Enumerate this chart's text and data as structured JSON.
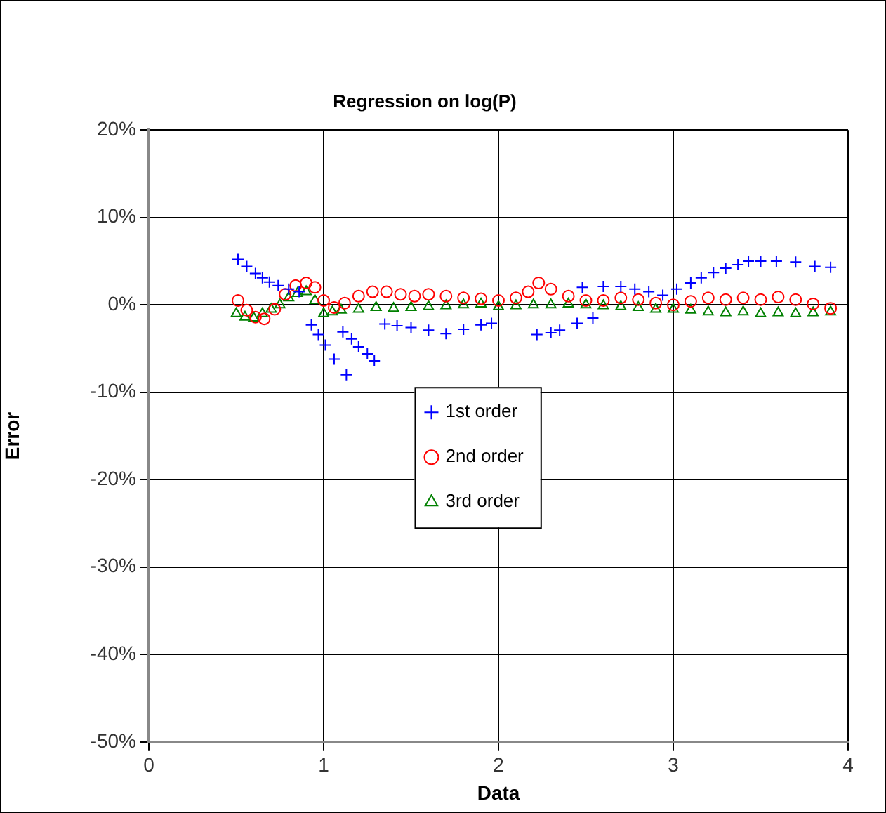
{
  "chart_data": {
    "type": "scatter",
    "title": "Regression on log(P)",
    "xlabel": "Data",
    "ylabel": "Error",
    "xlim": [
      0,
      4
    ],
    "xticks": [
      0,
      1,
      2,
      3,
      4
    ],
    "ylim": [
      -50,
      20
    ],
    "yticks": [
      {
        "value": 20,
        "label": "20%"
      },
      {
        "value": 10,
        "label": "10%"
      },
      {
        "value": 0,
        "label": "0%"
      },
      {
        "value": -10,
        "label": "-10%"
      },
      {
        "value": -20,
        "label": "-20%"
      },
      {
        "value": -30,
        "label": "-30%"
      },
      {
        "value": -40,
        "label": "-40%"
      },
      {
        "value": -50,
        "label": "-50%"
      }
    ],
    "grid": true,
    "legend": "center",
    "series": [
      {
        "name": "1st order",
        "color": "#0000ff",
        "marker": "cross",
        "x": [
          0.51,
          0.56,
          0.61,
          0.65,
          0.69,
          0.74,
          0.8,
          0.86,
          0.93,
          0.97,
          1.01,
          1.06,
          1.13,
          1.11,
          1.16,
          1.2,
          1.25,
          1.29,
          1.35,
          1.42,
          1.5,
          1.6,
          1.7,
          1.8,
          1.9,
          1.96,
          2.22,
          2.3,
          2.35,
          2.45,
          2.54,
          2.48,
          2.6,
          2.7,
          2.78,
          2.86,
          2.94,
          3.02,
          3.1,
          3.16,
          3.23,
          3.3,
          3.37,
          3.43,
          3.5,
          3.59,
          3.7,
          3.81,
          3.9
        ],
        "values": [
          5.2,
          4.4,
          3.6,
          3.1,
          2.6,
          2.2,
          1.8,
          1.5,
          -2.3,
          -3.4,
          -4.6,
          -6.2,
          -8,
          -3.1,
          -3.9,
          -4.8,
          -5.6,
          -6.4,
          -2.2,
          -2.4,
          -2.6,
          -2.9,
          -3.3,
          -2.8,
          -2.3,
          -2.1,
          -3.4,
          -3.2,
          -2.9,
          -2.1,
          -1.5,
          2,
          2.1,
          2.1,
          1.8,
          1.5,
          1.1,
          1.8,
          2.5,
          3.1,
          3.7,
          4.2,
          4.6,
          5,
          5,
          5,
          4.9,
          4.4,
          4.3
        ]
      },
      {
        "name": "2nd order",
        "color": "#ff0000",
        "marker": "circle",
        "x": [
          0.51,
          0.56,
          0.61,
          0.66,
          0.72,
          0.78,
          0.84,
          0.9,
          0.95,
          1,
          1.06,
          1.12,
          1.2,
          1.28,
          1.36,
          1.44,
          1.52,
          1.6,
          1.7,
          1.8,
          1.9,
          2,
          2.1,
          2.17,
          2.23,
          2.3,
          2.4,
          2.5,
          2.6,
          2.7,
          2.8,
          2.9,
          3,
          3.1,
          3.2,
          3.3,
          3.4,
          3.5,
          3.6,
          3.7,
          3.8,
          3.9
        ],
        "values": [
          0.5,
          -0.6,
          -1.4,
          -1.6,
          -0.5,
          1.2,
          2.2,
          2.5,
          2,
          0.5,
          -0.3,
          0.2,
          1,
          1.5,
          1.5,
          1.2,
          1,
          1.2,
          1,
          0.8,
          0.7,
          0.5,
          0.8,
          1.5,
          2.5,
          1.8,
          1,
          0.5,
          0.5,
          0.8,
          0.6,
          0.2,
          0,
          0.4,
          0.8,
          0.6,
          0.8,
          0.6,
          0.9,
          0.6,
          0.1,
          -0.4
        ]
      },
      {
        "name": "3rd order",
        "color": "#008000",
        "marker": "triangle",
        "x": [
          0.5,
          0.55,
          0.6,
          0.65,
          0.7,
          0.75,
          0.8,
          0.85,
          0.9,
          0.95,
          1,
          1.05,
          1.1,
          1.2,
          1.3,
          1.4,
          1.5,
          1.6,
          1.7,
          1.8,
          1.9,
          2,
          2.1,
          2.2,
          2.3,
          2.4,
          2.5,
          2.6,
          2.7,
          2.8,
          2.9,
          3,
          3.1,
          3.2,
          3.3,
          3.4,
          3.5,
          3.6,
          3.7,
          3.8,
          3.9
        ],
        "values": [
          -1,
          -1.4,
          -1.5,
          -1,
          -0.5,
          0,
          0.8,
          1.3,
          1.5,
          0.5,
          -1,
          -0.8,
          -0.6,
          -0.5,
          -0.3,
          -0.4,
          -0.3,
          -0.2,
          -0.1,
          0,
          0.1,
          -0.2,
          -0.1,
          0,
          0,
          0.1,
          0,
          -0.1,
          -0.2,
          -0.3,
          -0.5,
          -0.5,
          -0.6,
          -0.8,
          -0.9,
          -0.8,
          -1,
          -0.9,
          -1,
          -0.9,
          -0.8
        ]
      }
    ]
  }
}
